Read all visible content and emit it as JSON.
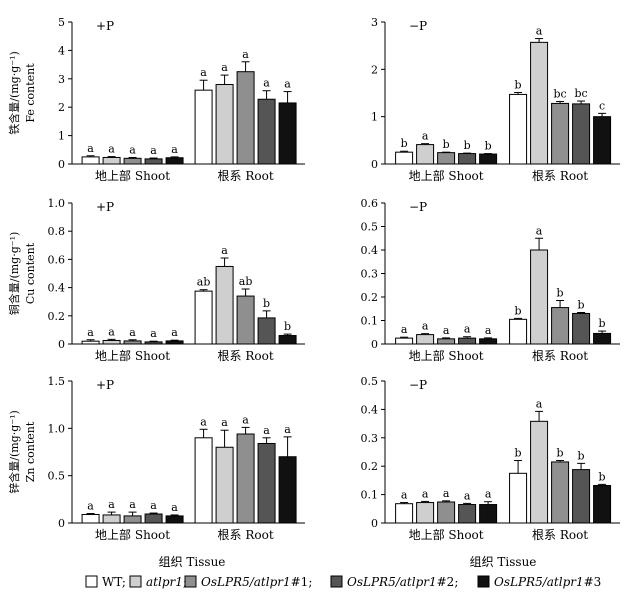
{
  "colors": {
    "wt": "#ffffff",
    "atlpr1": "#cfcfcf",
    "lpr5_1": "#8f8f8f",
    "lpr5_2": "#555555",
    "lpr5_3": "#111111"
  },
  "shared": {
    "xlabel_left": "组织 Tissue",
    "xlabel_right": "组织 Tissue",
    "legend": [
      {
        "key": "wt",
        "parts": [
          {
            "t": "WT;",
            "i": false
          }
        ]
      },
      {
        "key": "atlpr1",
        "parts": [
          {
            "t": "atlpr1",
            "i": true
          },
          {
            "t": ";",
            "i": false
          }
        ]
      },
      {
        "key": "lpr5_1",
        "parts": [
          {
            "t": "OsLPR5/atlpr1",
            "i": true
          },
          {
            "t": "#1;",
            "i": false
          }
        ]
      },
      {
        "key": "lpr5_2",
        "parts": [
          {
            "t": "OsLPR5/atlpr1",
            "i": true
          },
          {
            "t": "#2;",
            "i": false
          }
        ]
      },
      {
        "key": "lpr5_3",
        "parts": [
          {
            "t": "OsLPR5/atlpr1",
            "i": true
          },
          {
            "t": "#3",
            "i": false
          }
        ]
      }
    ]
  },
  "chart_data": [
    {
      "type": "bar",
      "id": "fe-plus",
      "title": "+P",
      "ylabel": [
        "铁含量/(mg·g⁻¹)",
        "Fe content"
      ],
      "ylim": [
        0,
        5
      ],
      "yticks": [
        "0",
        "1",
        "2",
        "3",
        "4",
        "5"
      ],
      "categories": [
        "地上部 Shoot",
        "根系 Root"
      ],
      "series": [
        {
          "name": "WT",
          "values": [
            0.25,
            2.6
          ],
          "errors": [
            0.04,
            0.35
          ],
          "letters": [
            "a",
            "a"
          ]
        },
        {
          "name": "atlpr1",
          "values": [
            0.23,
            2.8
          ],
          "errors": [
            0.03,
            0.33
          ],
          "letters": [
            "a",
            "a"
          ]
        },
        {
          "name": "OsLPR5/atlpr1#1",
          "values": [
            0.2,
            3.25
          ],
          "errors": [
            0.03,
            0.35
          ],
          "letters": [
            "a",
            "a"
          ]
        },
        {
          "name": "OsLPR5/atlpr1#2",
          "values": [
            0.18,
            2.28
          ],
          "errors": [
            0.03,
            0.3
          ],
          "letters": [
            "a",
            "a"
          ]
        },
        {
          "name": "OsLPR5/atlpr1#3",
          "values": [
            0.22,
            2.15
          ],
          "errors": [
            0.03,
            0.4
          ],
          "letters": [
            "a",
            "a"
          ]
        }
      ]
    },
    {
      "type": "bar",
      "id": "fe-minus",
      "title": "−P",
      "ylabel": [],
      "ylim": [
        0,
        3
      ],
      "yticks": [
        "0",
        "1",
        "2",
        "3"
      ],
      "categories": [
        "地上部 Shoot",
        "根系 Root"
      ],
      "series": [
        {
          "name": "WT",
          "values": [
            0.25,
            1.47
          ],
          "errors": [
            0.02,
            0.04
          ],
          "letters": [
            "b",
            "b"
          ]
        },
        {
          "name": "atlpr1",
          "values": [
            0.41,
            2.57
          ],
          "errors": [
            0.02,
            0.08
          ],
          "letters": [
            "a",
            "a"
          ]
        },
        {
          "name": "OsLPR5/atlpr1#1",
          "values": [
            0.24,
            1.28
          ],
          "errors": [
            0.01,
            0.04
          ],
          "letters": [
            "b",
            "bc"
          ]
        },
        {
          "name": "OsLPR5/atlpr1#2",
          "values": [
            0.22,
            1.27
          ],
          "errors": [
            0.01,
            0.06
          ],
          "letters": [
            "b",
            "bc"
          ]
        },
        {
          "name": "OsLPR5/atlpr1#3",
          "values": [
            0.21,
            1.0
          ],
          "errors": [
            0.01,
            0.07
          ],
          "letters": [
            "b",
            "c"
          ]
        }
      ]
    },
    {
      "type": "bar",
      "id": "cu-plus",
      "title": "+P",
      "ylabel": [
        "铜含量/(mg·g⁻¹)",
        "Cu content"
      ],
      "ylim": [
        0,
        1.0
      ],
      "yticks": [
        "0",
        "0.2",
        "0.4",
        "0.6",
        "0.8",
        "1.0"
      ],
      "categories": [
        "地上部 Shoot",
        "根系 Root"
      ],
      "series": [
        {
          "name": "WT",
          "values": [
            0.02,
            0.375
          ],
          "errors": [
            0.01,
            0.01
          ],
          "letters": [
            "a",
            "ab"
          ]
        },
        {
          "name": "atlpr1",
          "values": [
            0.025,
            0.55
          ],
          "errors": [
            0.008,
            0.06
          ],
          "letters": [
            "a",
            "a"
          ]
        },
        {
          "name": "OsLPR5/atlpr1#1",
          "values": [
            0.022,
            0.34
          ],
          "errors": [
            0.008,
            0.05
          ],
          "letters": [
            "a",
            "ab"
          ]
        },
        {
          "name": "OsLPR5/atlpr1#2",
          "values": [
            0.015,
            0.185
          ],
          "errors": [
            0.005,
            0.05
          ],
          "letters": [
            "a",
            "b"
          ]
        },
        {
          "name": "OsLPR5/atlpr1#3",
          "values": [
            0.022,
            0.06
          ],
          "errors": [
            0.005,
            0.01
          ],
          "letters": [
            "a",
            "b"
          ]
        }
      ]
    },
    {
      "type": "bar",
      "id": "cu-minus",
      "title": "−P",
      "ylabel": [],
      "ylim": [
        0,
        0.6
      ],
      "yticks": [
        "0",
        "0.1",
        "0.2",
        "0.3",
        "0.4",
        "0.5",
        "0.6"
      ],
      "categories": [
        "地上部 Shoot",
        "根系 Root"
      ],
      "series": [
        {
          "name": "WT",
          "values": [
            0.025,
            0.105
          ],
          "errors": [
            0.004,
            0.004
          ],
          "letters": [
            "a",
            "b"
          ]
        },
        {
          "name": "atlpr1",
          "values": [
            0.04,
            0.4
          ],
          "errors": [
            0.004,
            0.05
          ],
          "letters": [
            "a",
            "a"
          ]
        },
        {
          "name": "OsLPR5/atlpr1#1",
          "values": [
            0.022,
            0.155
          ],
          "errors": [
            0.004,
            0.03
          ],
          "letters": [
            "a",
            "b"
          ]
        },
        {
          "name": "OsLPR5/atlpr1#2",
          "values": [
            0.025,
            0.13
          ],
          "errors": [
            0.006,
            0.004
          ],
          "letters": [
            "a",
            "b"
          ]
        },
        {
          "name": "OsLPR5/atlpr1#3",
          "values": [
            0.022,
            0.045
          ],
          "errors": [
            0.004,
            0.01
          ],
          "letters": [
            "a",
            "b"
          ]
        }
      ]
    },
    {
      "type": "bar",
      "id": "zn-plus",
      "title": "+P",
      "ylabel": [
        "锌含量/(mg·g⁻¹)",
        "Zn content"
      ],
      "ylim": [
        0,
        1.5
      ],
      "yticks": [
        "0",
        "0.5",
        "1.0",
        "1.5"
      ],
      "categories": [
        "地上部 Shoot",
        "根系 Root"
      ],
      "series": [
        {
          "name": "WT",
          "values": [
            0.09,
            0.9
          ],
          "errors": [
            0.01,
            0.09
          ],
          "letters": [
            "a",
            "a"
          ]
        },
        {
          "name": "atlpr1",
          "values": [
            0.085,
            0.8
          ],
          "errors": [
            0.03,
            0.18
          ],
          "letters": [
            "a",
            "a"
          ]
        },
        {
          "name": "OsLPR5/atlpr1#1",
          "values": [
            0.075,
            0.94
          ],
          "errors": [
            0.04,
            0.07
          ],
          "letters": [
            "a",
            "a"
          ]
        },
        {
          "name": "OsLPR5/atlpr1#2",
          "values": [
            0.095,
            0.84
          ],
          "errors": [
            0.01,
            0.06
          ],
          "letters": [
            "a",
            "a"
          ]
        },
        {
          "name": "OsLPR5/atlpr1#3",
          "values": [
            0.075,
            0.7
          ],
          "errors": [
            0.01,
            0.21
          ],
          "letters": [
            "a",
            "a"
          ]
        }
      ]
    },
    {
      "type": "bar",
      "id": "zn-minus",
      "title": "−P",
      "ylabel": [],
      "ylim": [
        0,
        0.5
      ],
      "yticks": [
        "0",
        "0.1",
        "0.2",
        "0.3",
        "0.4",
        "0.5"
      ],
      "categories": [
        "地上部 Shoot",
        "根系 Root"
      ],
      "series": [
        {
          "name": "WT",
          "values": [
            0.068,
            0.175
          ],
          "errors": [
            0.004,
            0.045
          ],
          "letters": [
            "a",
            "b"
          ]
        },
        {
          "name": "atlpr1",
          "values": [
            0.072,
            0.358
          ],
          "errors": [
            0.004,
            0.035
          ],
          "letters": [
            "a",
            "a"
          ]
        },
        {
          "name": "OsLPR5/atlpr1#1",
          "values": [
            0.074,
            0.215
          ],
          "errors": [
            0.004,
            0.005
          ],
          "letters": [
            "a",
            "b"
          ]
        },
        {
          "name": "OsLPR5/atlpr1#2",
          "values": [
            0.065,
            0.188
          ],
          "errors": [
            0.004,
            0.022
          ],
          "letters": [
            "a",
            "b"
          ]
        },
        {
          "name": "OsLPR5/atlpr1#3",
          "values": [
            0.065,
            0.132
          ],
          "errors": [
            0.01,
            0.004
          ],
          "letters": [
            "a",
            "b"
          ]
        }
      ]
    }
  ]
}
